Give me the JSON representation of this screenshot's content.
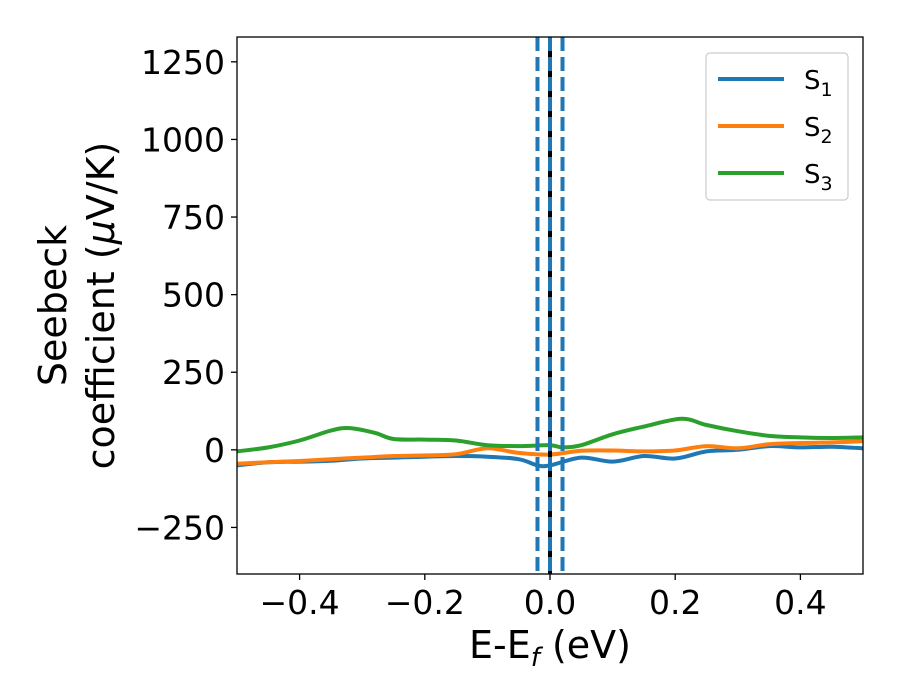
{
  "chart_data": {
    "type": "line",
    "xlabel": "E-E",
    "xlabel_sub": "f",
    "xlabel_unit": " (eV)",
    "ylabel_line1": "Seebeck",
    "ylabel_line2": "coefficient  (",
    "ylabel_mu": "μ",
    "ylabel_unit": "V/K)",
    "xlim": [
      -0.5,
      0.5
    ],
    "ylim": [
      -400,
      1330
    ],
    "xticks": [
      -0.4,
      -0.2,
      0.0,
      0.2,
      0.4
    ],
    "xtick_labels": [
      "−0.4",
      "−0.2",
      "0.0",
      "0.2",
      "0.4"
    ],
    "yticks": [
      -250,
      0,
      250,
      500,
      750,
      1000,
      1250
    ],
    "ytick_labels": [
      "−250",
      "0",
      "250",
      "500",
      "750",
      "1000",
      "1250"
    ],
    "grid": false,
    "legend_position": "top-right",
    "vlines": [
      {
        "x": -0.02,
        "style": "dashed",
        "color": "#1f77b4"
      },
      {
        "x": 0.02,
        "style": "dashed",
        "color": "#1f77b4"
      },
      {
        "x": 0.0,
        "style": "solid",
        "color": "#000000"
      },
      {
        "x": 0.0,
        "style": "dashed",
        "color": "#1f77b4"
      }
    ],
    "series": [
      {
        "name": "S",
        "sub": "1",
        "color": "#1f77b4",
        "x": [
          -0.5,
          -0.45,
          -0.4,
          -0.35,
          -0.3,
          -0.25,
          -0.2,
          -0.15,
          -0.1,
          -0.05,
          -0.02,
          0.0,
          0.05,
          0.1,
          0.15,
          0.2,
          0.25,
          0.3,
          0.35,
          0.4,
          0.45,
          0.5
        ],
        "y": [
          -50,
          -40,
          -38,
          -35,
          -28,
          -25,
          -22,
          -20,
          -22,
          -30,
          -50,
          -50,
          -25,
          -38,
          -20,
          -28,
          -5,
          0,
          12,
          8,
          10,
          5
        ]
      },
      {
        "name": "S",
        "sub": "2",
        "color": "#ff7f0e",
        "x": [
          -0.5,
          -0.45,
          -0.4,
          -0.35,
          -0.3,
          -0.25,
          -0.2,
          -0.15,
          -0.1,
          -0.05,
          0.0,
          0.05,
          0.1,
          0.15,
          0.2,
          0.25,
          0.3,
          0.35,
          0.4,
          0.45,
          0.5
        ],
        "y": [
          -45,
          -40,
          -36,
          -30,
          -25,
          -20,
          -18,
          -14,
          5,
          -10,
          -15,
          -3,
          -2,
          -5,
          -2,
          12,
          5,
          18,
          22,
          24,
          28
        ]
      },
      {
        "name": "S",
        "sub": "3",
        "color": "#2ca02c",
        "x": [
          -0.5,
          -0.45,
          -0.4,
          -0.35,
          -0.32,
          -0.28,
          -0.25,
          -0.2,
          -0.15,
          -0.1,
          -0.05,
          0.0,
          0.02,
          0.05,
          0.1,
          0.15,
          0.21,
          0.25,
          0.3,
          0.35,
          0.4,
          0.45,
          0.5
        ],
        "y": [
          -5,
          8,
          30,
          62,
          70,
          55,
          35,
          33,
          30,
          15,
          12,
          15,
          8,
          15,
          50,
          75,
          100,
          80,
          60,
          45,
          40,
          38,
          40
        ]
      }
    ]
  }
}
